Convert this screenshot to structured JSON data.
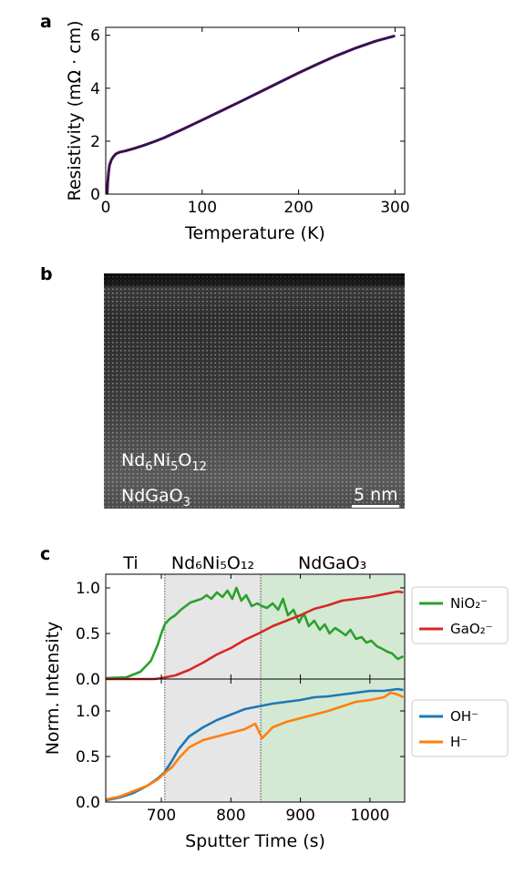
{
  "panel_labels": {
    "a": "a",
    "b": "b",
    "c": "c"
  },
  "panel_b": {
    "text_upper": "Nd6Ni5O12",
    "text_lower": "NdGaO3",
    "scale_bar_label": "5 nm"
  },
  "chart_data": [
    {
      "type": "line",
      "title": "",
      "xlabel": "Temperature (K)",
      "ylabel": "Resistivity (mΩ · cm)",
      "xlim": [
        0,
        310
      ],
      "ylim": [
        0,
        6.3
      ],
      "xticks": [
        0,
        100,
        200,
        300
      ],
      "yticks": [
        0,
        2,
        4,
        6
      ],
      "grid": false,
      "series": [
        {
          "color": "#3b0f50",
          "x": [
            1.5,
            2,
            3,
            4,
            6,
            8,
            10,
            12,
            15,
            20,
            25,
            30,
            40,
            50,
            60,
            80,
            100,
            120,
            140,
            160,
            180,
            200,
            220,
            240,
            260,
            280,
            290,
            300
          ],
          "y": [
            0.02,
            0.4,
            0.85,
            1.1,
            1.3,
            1.42,
            1.5,
            1.55,
            1.59,
            1.63,
            1.68,
            1.73,
            1.85,
            1.98,
            2.12,
            2.45,
            2.8,
            3.15,
            3.5,
            3.86,
            4.22,
            4.58,
            4.92,
            5.24,
            5.53,
            5.78,
            5.88,
            5.98
          ]
        }
      ]
    },
    {
      "type": "line",
      "title": "",
      "xlabel": "",
      "ylabel": "",
      "shared_ylabel": "Norm. Intensity",
      "xlim": [
        620,
        1050
      ],
      "ylim": [
        0,
        1.15
      ],
      "yticks": [
        0.0,
        0.5,
        1.0
      ],
      "grid": false,
      "regions": [
        {
          "label": "Ti",
          "x": [
            620,
            705
          ],
          "color": "#ffffff"
        },
        {
          "label": "Nd₆Ni₅O₁₂",
          "x": [
            705,
            843
          ],
          "color": "#e6e6e6"
        },
        {
          "label": "NdGaO₃",
          "x": [
            843,
            1050
          ],
          "color": "#d3e9d3"
        }
      ],
      "legend": "right, outside",
      "series": [
        {
          "name": "NiO₂⁻",
          "color": "#2ca02c",
          "x": [
            620,
            650,
            670,
            685,
            695,
            700,
            705,
            712,
            720,
            728,
            735,
            742,
            750,
            758,
            765,
            772,
            780,
            788,
            795,
            802,
            808,
            815,
            822,
            830,
            838,
            845,
            852,
            860,
            868,
            875,
            882,
            890,
            898,
            905,
            912,
            920,
            928,
            935,
            942,
            950,
            958,
            965,
            972,
            980,
            988,
            995,
            1002,
            1010,
            1018,
            1025,
            1032,
            1040,
            1048
          ],
          "y": [
            0.01,
            0.02,
            0.08,
            0.2,
            0.38,
            0.5,
            0.6,
            0.66,
            0.7,
            0.76,
            0.8,
            0.84,
            0.86,
            0.88,
            0.92,
            0.88,
            0.95,
            0.9,
            0.97,
            0.88,
            1.0,
            0.86,
            0.92,
            0.8,
            0.83,
            0.8,
            0.78,
            0.83,
            0.76,
            0.88,
            0.7,
            0.76,
            0.62,
            0.72,
            0.58,
            0.64,
            0.54,
            0.6,
            0.5,
            0.56,
            0.52,
            0.48,
            0.54,
            0.44,
            0.46,
            0.4,
            0.42,
            0.36,
            0.33,
            0.3,
            0.28,
            0.22,
            0.25
          ]
        },
        {
          "name": "GaO₂⁻",
          "color": "#d62728",
          "x": [
            620,
            690,
            700,
            720,
            740,
            760,
            780,
            800,
            820,
            840,
            860,
            880,
            900,
            920,
            940,
            960,
            980,
            1000,
            1020,
            1040,
            1048
          ],
          "y": [
            0.0,
            0.0,
            0.01,
            0.04,
            0.1,
            0.18,
            0.27,
            0.34,
            0.43,
            0.5,
            0.58,
            0.64,
            0.7,
            0.77,
            0.81,
            0.86,
            0.88,
            0.9,
            0.93,
            0.96,
            0.95
          ]
        },
        {
          "name": "OH⁻",
          "color": "#1f77b4",
          "x": [
            620,
            640,
            660,
            680,
            695,
            705,
            715,
            725,
            740,
            760,
            780,
            800,
            820,
            840,
            860,
            880,
            900,
            920,
            940,
            960,
            980,
            1000,
            1020,
            1040,
            1048
          ],
          "y": [
            0.02,
            0.05,
            0.1,
            0.18,
            0.26,
            0.33,
            0.45,
            0.58,
            0.72,
            0.82,
            0.9,
            0.96,
            1.02,
            1.05,
            1.08,
            1.1,
            1.12,
            1.15,
            1.16,
            1.18,
            1.2,
            1.22,
            1.22,
            1.24,
            1.23
          ]
        },
        {
          "name": "H⁻",
          "color": "#ff7f0e",
          "x": [
            620,
            640,
            660,
            680,
            695,
            705,
            715,
            725,
            740,
            760,
            780,
            800,
            820,
            835,
            845,
            860,
            880,
            900,
            920,
            940,
            960,
            980,
            1000,
            1020,
            1030,
            1040,
            1048
          ],
          "y": [
            0.03,
            0.06,
            0.12,
            0.18,
            0.25,
            0.32,
            0.38,
            0.48,
            0.6,
            0.68,
            0.72,
            0.76,
            0.8,
            0.86,
            0.7,
            0.82,
            0.88,
            0.92,
            0.96,
            1.0,
            1.05,
            1.1,
            1.12,
            1.15,
            1.2,
            1.18,
            1.15
          ]
        }
      ],
      "subplots": [
        {
          "series": [
            "NiO₂⁻",
            "GaO₂⁻"
          ],
          "ylim": [
            0,
            1.15
          ],
          "yticks": [
            0.0,
            0.5,
            1.0
          ]
        },
        {
          "series": [
            "OH⁻",
            "H⁻"
          ],
          "ylim": [
            0,
            1.35
          ],
          "yticks": [
            0.0,
            0.5,
            1.0
          ],
          "xticks": [
            700,
            800,
            900,
            1000
          ],
          "xlabel": "Sputter Time (s)"
        }
      ]
    }
  ]
}
